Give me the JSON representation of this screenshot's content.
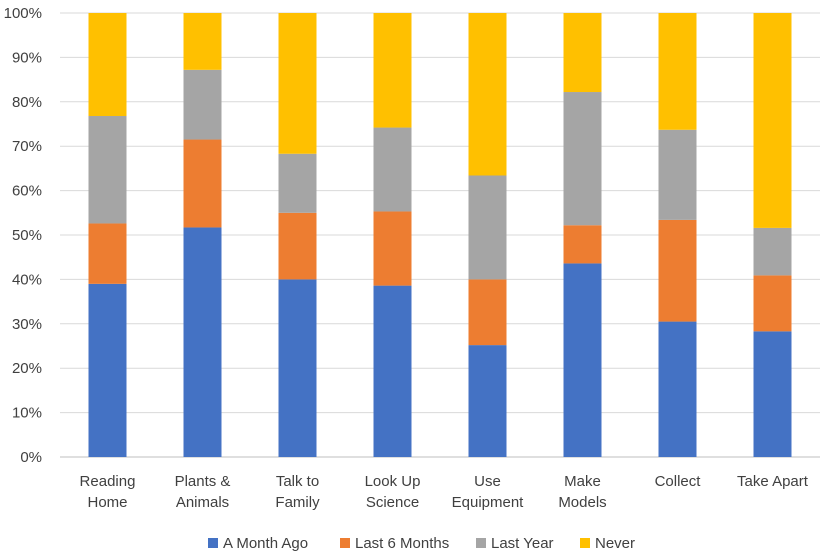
{
  "chart_data": {
    "type": "bar",
    "stacked": "percent",
    "categories": [
      [
        "Reading",
        "Home"
      ],
      [
        "Plants &",
        "Animals"
      ],
      [
        "Talk to",
        "Family"
      ],
      [
        "Look Up",
        "Science"
      ],
      [
        "Use",
        "Equipment"
      ],
      [
        "Make",
        "Models"
      ],
      [
        "Collect"
      ],
      [
        "Take Apart"
      ]
    ],
    "series": [
      {
        "name": "A Month Ago",
        "color": "#4472C4",
        "values": [
          39,
          51.7,
          40,
          38.6,
          25.2,
          43.6,
          30.5,
          28.3
        ]
      },
      {
        "name": "Last 6 Months",
        "color": "#ED7D31",
        "values": [
          13.6,
          19.8,
          15,
          16.7,
          14.8,
          8.6,
          22.9,
          12.6
        ]
      },
      {
        "name": "Last Year",
        "color": "#A5A5A5",
        "values": [
          24.2,
          15.7,
          13.3,
          18.9,
          23.4,
          30,
          20.3,
          10.7
        ]
      },
      {
        "name": "Never",
        "color": "#FFC000",
        "values": [
          23.2,
          12.8,
          31.7,
          25.8,
          36.6,
          17.8,
          26.3,
          48.4
        ]
      }
    ],
    "yticks": [
      "0%",
      "10%",
      "20%",
      "30%",
      "40%",
      "50%",
      "60%",
      "70%",
      "80%",
      "90%",
      "100%"
    ],
    "ylim": [
      0,
      100
    ],
    "grid": true,
    "legend": "bottom",
    "title": "",
    "xlabel": "",
    "ylabel": ""
  }
}
